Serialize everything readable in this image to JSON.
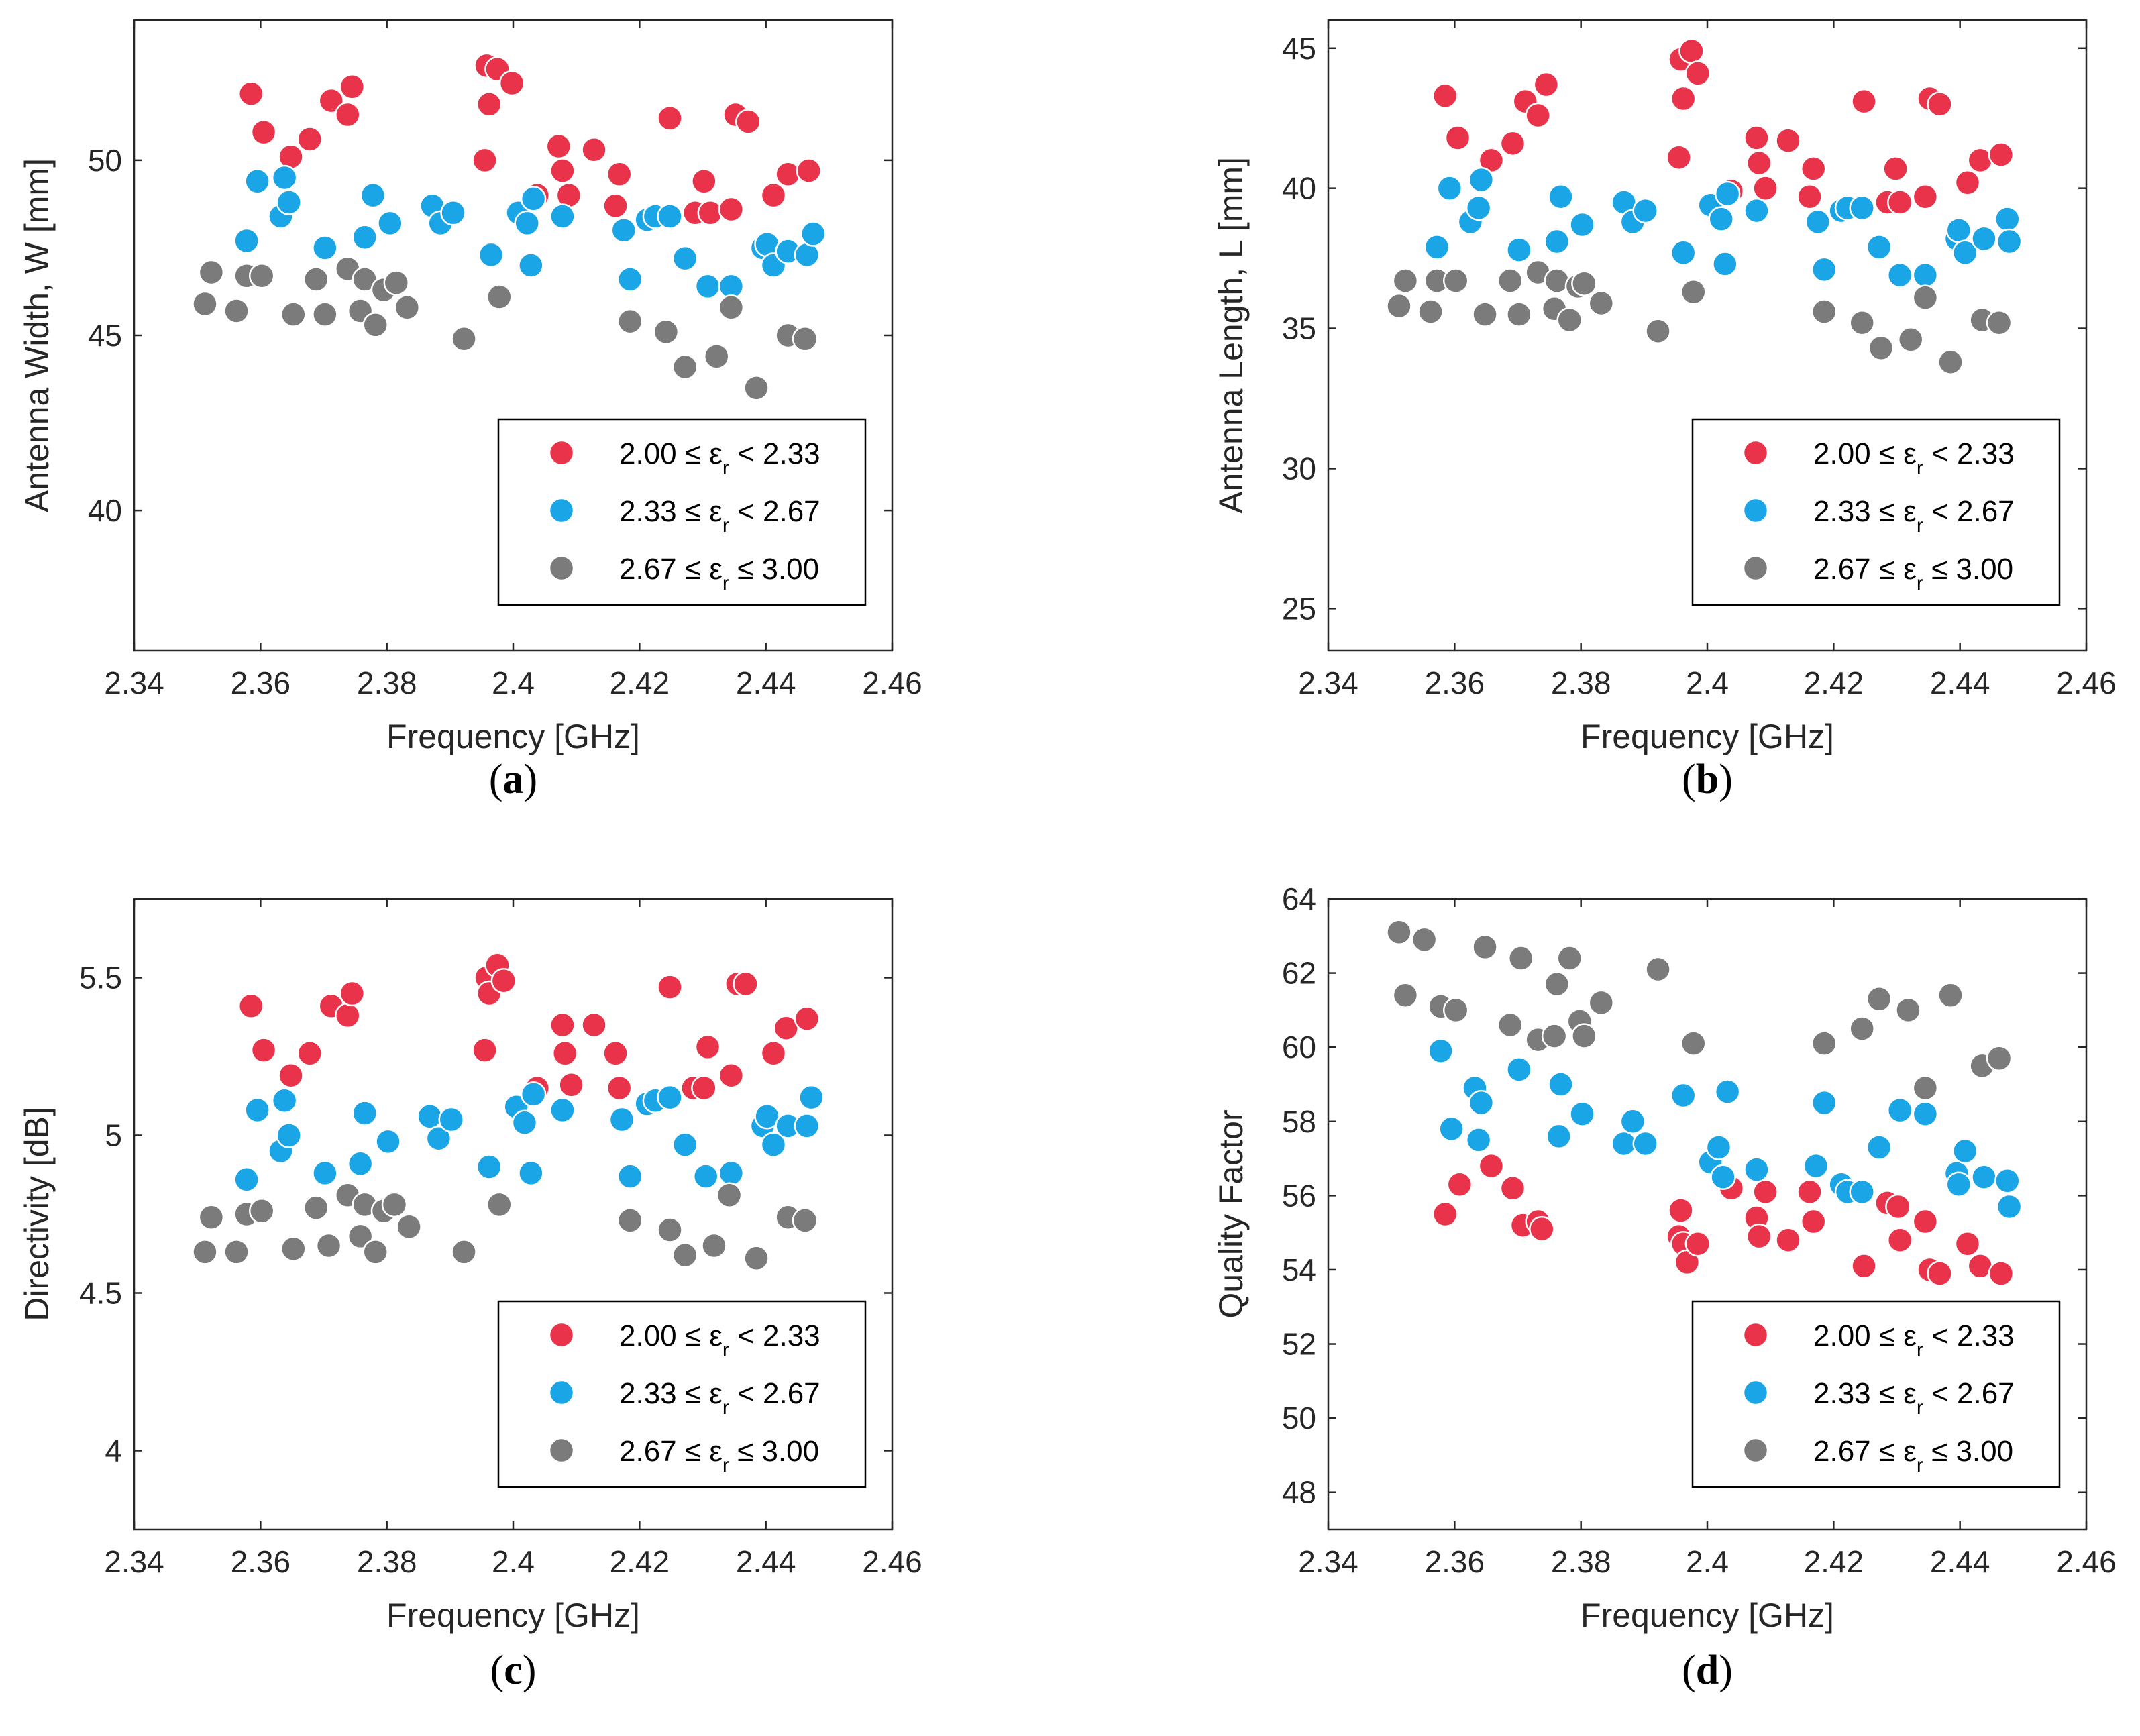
{
  "chart_data": [
    {
      "type": "scatter",
      "panel_label": "a",
      "xlabel": "Frequency [GHz]",
      "ylabel": "Antenna Width, W [mm]",
      "xlim": [
        2.34,
        2.46
      ],
      "ylim": [
        36,
        54
      ],
      "xticks": [
        "2.34",
        "2.36",
        "2.38",
        "2.4",
        "2.42",
        "2.44",
        "2.46"
      ],
      "yticks": [
        "40",
        "45",
        "50"
      ],
      "ytick_values": [
        40,
        45,
        50
      ],
      "grid": false,
      "legend_position": "bottom-right",
      "series": [
        {
          "name": "2.00 ≤ ε_r < 2.33",
          "color": "#e8334a",
          "x": [
            2.3585,
            2.3605,
            2.3648,
            2.3678,
            2.3712,
            2.3738,
            2.3745,
            2.3955,
            2.3958,
            2.3962,
            2.3975,
            2.3998,
            2.4038,
            2.4072,
            2.4078,
            2.4088,
            2.4128,
            2.4162,
            2.4168,
            2.4248,
            2.4288,
            2.4302,
            2.4312,
            2.4345,
            2.4352,
            2.4372,
            2.4412,
            2.4435,
            2.4468
          ],
          "y": [
            51.9,
            50.8,
            50.1,
            50.6,
            51.7,
            51.3,
            52.1,
            50.0,
            52.7,
            51.6,
            52.6,
            52.2,
            49.0,
            50.4,
            49.7,
            49.0,
            50.3,
            48.7,
            49.6,
            51.2,
            48.5,
            49.4,
            48.5,
            48.6,
            51.3,
            51.1,
            49.0,
            49.6,
            49.7
          ]
        },
        {
          "name": "2.33 ≤ ε_r < 2.67",
          "color": "#1aa5e6",
          "x": [
            2.3578,
            2.3595,
            2.3632,
            2.3638,
            2.3645,
            2.3702,
            2.3765,
            2.3778,
            2.3805,
            2.3872,
            2.3885,
            2.3905,
            2.3965,
            2.4008,
            2.4022,
            2.4028,
            2.4032,
            2.4078,
            2.4175,
            2.4185,
            2.4212,
            2.4225,
            2.4248,
            2.4272,
            2.4308,
            2.4345,
            2.4395,
            2.4402,
            2.4412,
            2.4435,
            2.4465,
            2.4475
          ],
          "y": [
            47.7,
            49.4,
            48.4,
            49.5,
            48.8,
            47.5,
            47.8,
            49.0,
            48.2,
            48.7,
            48.2,
            48.5,
            47.3,
            48.5,
            48.2,
            47.0,
            48.9,
            48.4,
            48.0,
            46.6,
            48.3,
            48.4,
            48.4,
            47.2,
            46.4,
            46.4,
            47.5,
            47.6,
            47.0,
            47.4,
            47.3,
            47.9
          ]
        },
        {
          "name": "2.67 ≤ ε_r ≤ 3.00",
          "color": "#7b7b7b",
          "x": [
            2.3512,
            2.3522,
            2.3562,
            2.3578,
            2.3602,
            2.3652,
            2.3688,
            2.3702,
            2.3738,
            2.3758,
            2.3765,
            2.3782,
            2.3795,
            2.3815,
            2.3832,
            2.3922,
            2.3978,
            2.4185,
            2.4242,
            2.4272,
            2.4322,
            2.4345,
            2.4385,
            2.4435,
            2.4462
          ],
          "y": [
            45.9,
            46.8,
            45.7,
            46.7,
            46.7,
            45.6,
            46.6,
            45.6,
            46.9,
            45.7,
            46.6,
            45.3,
            46.3,
            46.5,
            45.8,
            44.9,
            46.1,
            45.4,
            45.1,
            44.1,
            44.4,
            45.8,
            43.5,
            45.0,
            44.9
          ]
        }
      ]
    },
    {
      "type": "scatter",
      "panel_label": "b",
      "xlabel": "Frequency [GHz]",
      "ylabel": "Antenna Length, L [mm]",
      "xlim": [
        2.34,
        2.46
      ],
      "ylim": [
        23.5,
        46
      ],
      "xticks": [
        "2.34",
        "2.36",
        "2.38",
        "2.4",
        "2.42",
        "2.44",
        "2.46"
      ],
      "yticks": [
        "25",
        "30",
        "35",
        "40",
        "45"
      ],
      "ytick_values": [
        25,
        30,
        35,
        40,
        45
      ],
      "grid": false,
      "legend_position": "bottom-right",
      "series": [
        {
          "name": "2.00 ≤ ε_r < 2.33",
          "color": "#e8334a",
          "x": [
            2.3585,
            2.3605,
            2.3658,
            2.3692,
            2.3712,
            2.3732,
            2.3745,
            2.3955,
            2.3958,
            2.3962,
            2.3975,
            2.3985,
            2.4038,
            2.4078,
            2.4082,
            2.4092,
            2.4128,
            2.4162,
            2.4168,
            2.4248,
            2.4285,
            2.4298,
            2.4305,
            2.4345,
            2.4352,
            2.4368,
            2.4412,
            2.4432,
            2.4465
          ],
          "y": [
            43.3,
            41.8,
            41.0,
            41.6,
            43.1,
            42.6,
            43.7,
            41.1,
            44.6,
            43.2,
            44.9,
            44.1,
            39.9,
            41.8,
            40.9,
            40.0,
            41.7,
            39.7,
            40.7,
            43.1,
            39.5,
            40.7,
            39.5,
            39.7,
            43.2,
            43.0,
            40.2,
            41.0,
            41.2
          ]
        },
        {
          "name": "2.33 ≤ ε_r < 2.67",
          "color": "#1aa5e6",
          "x": [
            2.3572,
            2.3592,
            2.3625,
            2.3638,
            2.3642,
            2.3702,
            2.3762,
            2.3768,
            2.3802,
            2.3868,
            2.3882,
            2.3902,
            2.3962,
            2.4005,
            2.4022,
            2.4028,
            2.4032,
            2.4078,
            2.4175,
            2.4185,
            2.4212,
            2.4222,
            2.4245,
            2.4272,
            2.4305,
            2.4345,
            2.4395,
            2.4398,
            2.4408,
            2.4438,
            2.4475,
            2.4478
          ],
          "y": [
            37.9,
            40.0,
            38.8,
            39.3,
            40.3,
            37.8,
            38.1,
            39.7,
            38.7,
            39.5,
            38.8,
            39.2,
            37.7,
            39.4,
            38.9,
            37.3,
            39.8,
            39.2,
            38.8,
            37.1,
            39.2,
            39.3,
            39.3,
            37.9,
            36.9,
            36.9,
            38.2,
            38.5,
            37.7,
            38.2,
            38.9,
            38.1
          ]
        },
        {
          "name": "2.67 ≤ ε_r ≤ 3.00",
          "color": "#7b7b7b",
          "x": [
            2.3512,
            2.3522,
            2.3562,
            2.3572,
            2.3602,
            2.3648,
            2.3688,
            2.3702,
            2.3732,
            2.3758,
            2.3762,
            2.3782,
            2.3795,
            2.3805,
            2.3832,
            2.3922,
            2.3978,
            2.4185,
            2.4245,
            2.4275,
            2.4322,
            2.4345,
            2.4385,
            2.4435,
            2.4462
          ],
          "y": [
            35.8,
            36.7,
            35.6,
            36.7,
            36.7,
            35.5,
            36.7,
            35.5,
            37.0,
            35.7,
            36.7,
            35.3,
            36.5,
            36.6,
            35.9,
            34.9,
            36.3,
            35.6,
            35.2,
            34.3,
            34.6,
            36.1,
            33.8,
            35.3,
            35.2
          ]
        }
      ]
    },
    {
      "type": "scatter",
      "panel_label": "c",
      "xlabel": "Frequency [GHz]",
      "ylabel": "Directivity [dB]",
      "xlim": [
        2.34,
        2.46
      ],
      "ylim": [
        3.75,
        5.75
      ],
      "xticks": [
        "2.34",
        "2.36",
        "2.38",
        "2.4",
        "2.42",
        "2.44",
        "2.46"
      ],
      "yticks": [
        "4",
        "4.5",
        "5",
        "5.5"
      ],
      "ytick_values": [
        4,
        4.5,
        5,
        5.5
      ],
      "grid": false,
      "legend_position": "bottom-right",
      "series": [
        {
          "name": "2.00 ≤ ε_r < 2.33",
          "color": "#e8334a",
          "x": [
            2.3585,
            2.3605,
            2.3648,
            2.3678,
            2.3712,
            2.3738,
            2.3745,
            2.3955,
            2.3958,
            2.3962,
            2.3975,
            2.3985,
            2.4038,
            2.4078,
            2.4082,
            2.4092,
            2.4128,
            2.4162,
            2.4168,
            2.4248,
            2.4285,
            2.4302,
            2.4308,
            2.4345,
            2.4355,
            2.4368,
            2.4412,
            2.4432,
            2.4465
          ],
          "y": [
            5.41,
            5.27,
            5.19,
            5.26,
            5.41,
            5.38,
            5.45,
            5.27,
            5.5,
            5.45,
            5.54,
            5.49,
            5.15,
            5.35,
            5.26,
            5.16,
            5.35,
            5.26,
            5.15,
            5.47,
            5.15,
            5.15,
            5.28,
            5.19,
            5.48,
            5.48,
            5.26,
            5.34,
            5.37
          ]
        },
        {
          "name": "2.33 ≤ ε_r < 2.67",
          "color": "#1aa5e6",
          "x": [
            2.3578,
            2.3595,
            2.3632,
            2.3638,
            2.3645,
            2.3702,
            2.3758,
            2.3765,
            2.3802,
            2.3868,
            2.3882,
            2.3902,
            2.3962,
            2.4005,
            2.4018,
            2.4028,
            2.4032,
            2.4078,
            2.4172,
            2.4185,
            2.4212,
            2.4225,
            2.4248,
            2.4272,
            2.4305,
            2.4345,
            2.4395,
            2.4402,
            2.4412,
            2.4435,
            2.4465,
            2.4472
          ],
          "y": [
            4.86,
            5.08,
            4.95,
            5.11,
            5.0,
            4.88,
            4.91,
            5.07,
            4.98,
            5.06,
            4.99,
            5.05,
            4.9,
            5.09,
            5.04,
            4.88,
            5.13,
            5.08,
            5.05,
            4.87,
            5.1,
            5.11,
            5.12,
            4.97,
            4.87,
            4.88,
            5.03,
            5.06,
            4.97,
            5.03,
            5.03,
            5.12
          ]
        },
        {
          "name": "2.67 ≤ ε_r ≤ 3.00",
          "color": "#7b7b7b",
          "x": [
            2.3512,
            2.3522,
            2.3562,
            2.3578,
            2.3602,
            2.3652,
            2.3688,
            2.3708,
            2.3738,
            2.3758,
            2.3765,
            2.3782,
            2.3795,
            2.3812,
            2.3835,
            2.3922,
            2.3978,
            2.4185,
            2.4248,
            2.4272,
            2.4318,
            2.4342,
            2.4385,
            2.4435,
            2.4462
          ],
          "y": [
            4.63,
            4.74,
            4.63,
            4.75,
            4.76,
            4.64,
            4.77,
            4.65,
            4.81,
            4.68,
            4.78,
            4.63,
            4.76,
            4.78,
            4.71,
            4.63,
            4.78,
            4.73,
            4.7,
            4.62,
            4.65,
            4.81,
            4.61,
            4.74,
            4.73
          ]
        }
      ]
    },
    {
      "type": "scatter",
      "panel_label": "d",
      "xlabel": "Frequency [GHz]",
      "ylabel": "Quality Factor",
      "xlim": [
        2.34,
        2.46
      ],
      "ylim": [
        47,
        64
      ],
      "xticks": [
        "2.34",
        "2.36",
        "2.38",
        "2.4",
        "2.42",
        "2.44",
        "2.46"
      ],
      "yticks": [
        "48",
        "50",
        "52",
        "54",
        "56",
        "58",
        "60",
        "62",
        "64"
      ],
      "ytick_values": [
        48,
        50,
        52,
        54,
        56,
        58,
        60,
        62,
        64
      ],
      "grid": false,
      "legend_position": "bottom-right",
      "series": [
        {
          "name": "2.00 ≤ ε_r < 2.33",
          "color": "#e8334a",
          "x": [
            2.3585,
            2.3608,
            2.3658,
            2.3692,
            2.3708,
            2.3732,
            2.3738,
            2.3955,
            2.3958,
            2.3962,
            2.3968,
            2.3985,
            2.4038,
            2.4078,
            2.4082,
            2.4092,
            2.4128,
            2.4162,
            2.4168,
            2.4248,
            2.4285,
            2.4302,
            2.4305,
            2.4345,
            2.4352,
            2.4368,
            2.4412,
            2.4432,
            2.4465
          ],
          "y": [
            55.5,
            56.3,
            56.8,
            56.2,
            55.2,
            55.3,
            55.1,
            54.9,
            55.6,
            54.7,
            54.2,
            54.7,
            56.2,
            55.4,
            54.9,
            56.1,
            54.8,
            56.1,
            55.3,
            54.1,
            55.8,
            55.7,
            54.8,
            55.3,
            54.0,
            53.9,
            54.7,
            54.1,
            53.9
          ]
        },
        {
          "name": "2.33 ≤ ε_r < 2.67",
          "color": "#1aa5e6",
          "x": [
            2.3578,
            2.3595,
            2.3632,
            2.3638,
            2.3642,
            2.3702,
            2.3765,
            2.3768,
            2.3802,
            2.3868,
            2.3882,
            2.3902,
            2.3962,
            2.4005,
            2.4018,
            2.4025,
            2.4032,
            2.4078,
            2.4172,
            2.4185,
            2.4212,
            2.4222,
            2.4245,
            2.4272,
            2.4305,
            2.4345,
            2.4395,
            2.4398,
            2.4408,
            2.4438,
            2.4475,
            2.4478
          ],
          "y": [
            59.9,
            57.8,
            58.9,
            57.5,
            58.5,
            59.4,
            57.6,
            59.0,
            58.2,
            57.4,
            58.0,
            57.4,
            58.7,
            56.9,
            57.3,
            56.5,
            58.8,
            56.7,
            56.8,
            58.5,
            56.3,
            56.1,
            56.1,
            57.3,
            58.3,
            58.2,
            56.6,
            56.3,
            57.2,
            56.5,
            56.4,
            55.7
          ]
        },
        {
          "name": "2.67 ≤ ε_r ≤ 3.00",
          "color": "#7b7b7b",
          "x": [
            2.3512,
            2.3522,
            2.3552,
            2.3578,
            2.3602,
            2.3648,
            2.3688,
            2.3705,
            2.3732,
            2.3758,
            2.3762,
            2.3782,
            2.3798,
            2.3805,
            2.3832,
            2.3922,
            2.3978,
            2.4185,
            2.4245,
            2.4272,
            2.4318,
            2.4345,
            2.4385,
            2.4435,
            2.4462
          ],
          "y": [
            63.1,
            61.4,
            62.9,
            61.1,
            61.0,
            62.7,
            60.6,
            62.4,
            60.2,
            60.3,
            61.7,
            62.4,
            60.7,
            60.3,
            61.2,
            62.1,
            60.1,
            60.1,
            60.5,
            61.3,
            61.0,
            58.9,
            61.4,
            59.5,
            59.7
          ]
        }
      ]
    }
  ]
}
